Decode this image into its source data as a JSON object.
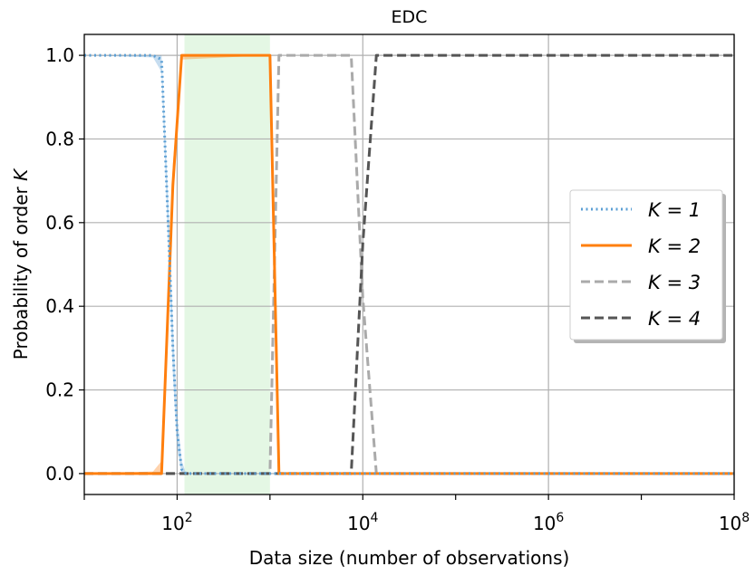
{
  "chart_data": {
    "type": "line",
    "title": "EDC",
    "xlabel": "Data size (number of observations)",
    "ylabel": "Probability of order K",
    "xscale": "log",
    "xlim": [
      10,
      100000000
    ],
    "ylim": [
      -0.05,
      1.05
    ],
    "xticks": [
      {
        "value": 100,
        "base": "10",
        "exp": "2"
      },
      {
        "value": 10000,
        "base": "10",
        "exp": "4"
      },
      {
        "value": 1000000,
        "base": "10",
        "exp": "6"
      },
      {
        "value": 100000000,
        "base": "10",
        "exp": "8"
      }
    ],
    "xminor_ticks": [
      10,
      1000,
      100000,
      10000000
    ],
    "yticks": [
      {
        "value": 0.0,
        "label": "0.0"
      },
      {
        "value": 0.2,
        "label": "0.2"
      },
      {
        "value": 0.4,
        "label": "0.4"
      },
      {
        "value": 0.6,
        "label": "0.6"
      },
      {
        "value": 0.8,
        "label": "0.8"
      },
      {
        "value": 1.0,
        "label": "1.0"
      }
    ],
    "grid": true,
    "legend_position": "center-right",
    "shaded_region": {
      "x_start": 120,
      "x_end": 1000,
      "color": "#e4f7e4"
    },
    "series": [
      {
        "name": "K = 1",
        "color": "#5b9fd4",
        "style": "dotted",
        "x": [
          10,
          55,
          68,
          80,
          90,
          100,
          112,
          125,
          150,
          200,
          1000,
          10000,
          100000000
        ],
        "y": [
          1.0,
          1.0,
          0.99,
          0.6,
          0.3,
          0.1,
          0.01,
          0.0,
          0.0,
          0.0,
          0.0,
          0.0,
          0.0
        ],
        "band_lower": [
          1.0,
          0.995,
          0.96,
          0.55,
          0.24,
          0.06,
          0.0,
          0.0,
          0.0,
          0.0,
          0.0,
          0.0,
          0.0
        ],
        "band_upper": [
          1.0,
          1.0,
          1.0,
          0.66,
          0.36,
          0.14,
          0.03,
          0.0,
          0.0,
          0.0,
          0.0,
          0.0,
          0.0
        ]
      },
      {
        "name": "K = 2",
        "color": "#ff7f0e",
        "style": "solid",
        "x": [
          10,
          55,
          68,
          80,
          90,
          112,
          1000,
          1250,
          10000,
          100000000
        ],
        "y": [
          0.0,
          0.0,
          0.0,
          0.4,
          0.69,
          1.0,
          1.0,
          0.0,
          0.0,
          0.0
        ],
        "band_lower": [
          0.0,
          0.0,
          0.0,
          0.35,
          0.64,
          0.99,
          1.0,
          0.0,
          0.0,
          0.0
        ],
        "band_upper": [
          0.0,
          0.005,
          0.03,
          0.45,
          0.74,
          1.0,
          1.0,
          0.0,
          0.0,
          0.0
        ]
      },
      {
        "name": "K = 3",
        "color": "#aaaaaa",
        "style": "dashed",
        "x": [
          10,
          1000,
          1250,
          7500,
          10000,
          14000,
          100000000
        ],
        "y": [
          0.0,
          0.0,
          1.0,
          1.0,
          0.42,
          0.0,
          0.0
        ]
      },
      {
        "name": "K = 4",
        "color": "#555555",
        "style": "dashed",
        "x": [
          10,
          7500,
          10000,
          14000,
          100000000
        ],
        "y": [
          0.0,
          0.0,
          0.55,
          1.0,
          1.0
        ]
      }
    ]
  }
}
